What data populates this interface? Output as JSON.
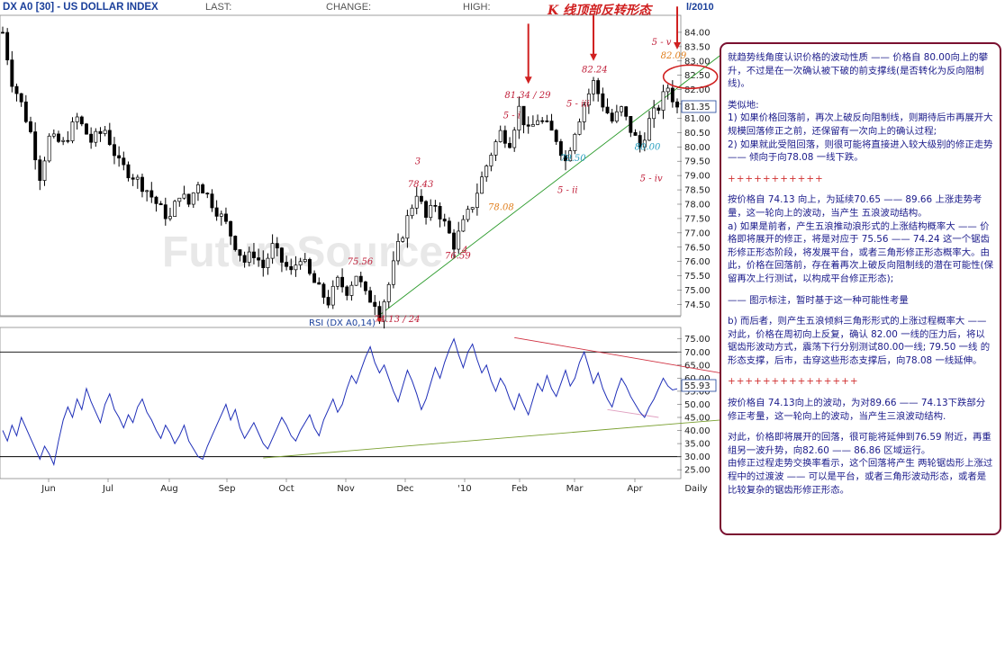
{
  "header": {
    "symbol": "DX A0 [30] - US DOLLAR INDEX",
    "last_label": "LAST:",
    "change_label": "CHANGE:",
    "high_label": "HIGH:",
    "date_fragment": "l/2010",
    "pattern_title": "K 线顶部反转形态"
  },
  "watermark": "FutureSource",
  "chart_data": [
    {
      "type": "candlestick",
      "title": "DX A0 [30] - US DOLLAR INDEX",
      "x_ticks": [
        "Jun",
        "Jul",
        "Aug",
        "Sep",
        "Oct",
        "Nov",
        "Dec",
        "'10",
        "Feb",
        "Mar",
        "Apr",
        "Daily"
      ],
      "y_ticks": [
        "84.00",
        "83.50",
        "83.00",
        "82.50",
        "82.00",
        "81.50",
        "81.00",
        "80.50",
        "80.00",
        "79.50",
        "79.00",
        "78.50",
        "78.00",
        "77.50",
        "77.00",
        "76.50",
        "76.00",
        "75.50",
        "75.00",
        "74.50"
      ],
      "ylim": [
        74.2,
        84.5
      ],
      "last_price": "81.35",
      "series_path": [
        {
          "x": 0,
          "y": 84.0
        },
        {
          "x": 2,
          "y": 82.3
        },
        {
          "x": 4,
          "y": 81.5
        },
        {
          "x": 6,
          "y": 80.5
        },
        {
          "x": 8,
          "y": 79.0
        },
        {
          "x": 10,
          "y": 80.3
        },
        {
          "x": 13,
          "y": 80.1
        },
        {
          "x": 16,
          "y": 81.0
        },
        {
          "x": 19,
          "y": 80.2
        },
        {
          "x": 22,
          "y": 80.6
        },
        {
          "x": 25,
          "y": 79.4
        },
        {
          "x": 28,
          "y": 79.0
        },
        {
          "x": 31,
          "y": 78.5
        },
        {
          "x": 34,
          "y": 77.8
        },
        {
          "x": 36,
          "y": 77.5
        },
        {
          "x": 38,
          "y": 78.4
        },
        {
          "x": 40,
          "y": 78.0
        },
        {
          "x": 42,
          "y": 78.8
        },
        {
          "x": 44,
          "y": 78.3
        },
        {
          "x": 46,
          "y": 77.8
        },
        {
          "x": 48,
          "y": 77.3
        },
        {
          "x": 50,
          "y": 76.6
        },
        {
          "x": 52,
          "y": 76.0
        },
        {
          "x": 54,
          "y": 76.3
        },
        {
          "x": 56,
          "y": 75.8
        },
        {
          "x": 58,
          "y": 76.5
        },
        {
          "x": 60,
          "y": 76.0
        },
        {
          "x": 62,
          "y": 75.6
        },
        {
          "x": 64,
          "y": 76.2
        },
        {
          "x": 66,
          "y": 75.5
        },
        {
          "x": 68,
          "y": 75.0
        },
        {
          "x": 70,
          "y": 74.6
        },
        {
          "x": 72,
          "y": 75.3
        },
        {
          "x": 74,
          "y": 75.0
        },
        {
          "x": 76,
          "y": 75.56
        },
        {
          "x": 78,
          "y": 74.8
        },
        {
          "x": 80,
          "y": 74.6
        },
        {
          "x": 81,
          "y": 74.13
        },
        {
          "x": 83,
          "y": 75.2
        },
        {
          "x": 85,
          "y": 76.5
        },
        {
          "x": 87,
          "y": 77.5
        },
        {
          "x": 89,
          "y": 78.43
        },
        {
          "x": 91,
          "y": 77.5
        },
        {
          "x": 93,
          "y": 78.0
        },
        {
          "x": 95,
          "y": 77.3
        },
        {
          "x": 97,
          "y": 76.59
        },
        {
          "x": 99,
          "y": 77.3
        },
        {
          "x": 101,
          "y": 78.0
        },
        {
          "x": 103,
          "y": 78.9
        },
        {
          "x": 105,
          "y": 79.8
        },
        {
          "x": 107,
          "y": 80.5
        },
        {
          "x": 109,
          "y": 80.2
        },
        {
          "x": 111,
          "y": 81.34
        },
        {
          "x": 113,
          "y": 80.5
        },
        {
          "x": 115,
          "y": 81.0
        },
        {
          "x": 117,
          "y": 80.7
        },
        {
          "x": 119,
          "y": 80.3
        },
        {
          "x": 121,
          "y": 79.5
        },
        {
          "x": 123,
          "y": 80.6
        },
        {
          "x": 125,
          "y": 81.5
        },
        {
          "x": 127,
          "y": 82.24
        },
        {
          "x": 129,
          "y": 81.5
        },
        {
          "x": 131,
          "y": 80.9
        },
        {
          "x": 133,
          "y": 81.3
        },
        {
          "x": 135,
          "y": 80.6
        },
        {
          "x": 137,
          "y": 80.0
        },
        {
          "x": 139,
          "y": 80.9
        },
        {
          "x": 141,
          "y": 81.4
        },
        {
          "x": 143,
          "y": 82.09
        },
        {
          "x": 145,
          "y": 81.35
        }
      ]
    },
    {
      "type": "line",
      "title": "RSI (DX A0,14)",
      "y_ticks": [
        "75.00",
        "70.00",
        "65.00",
        "60.00",
        "55.00",
        "50.00",
        "45.00",
        "40.00",
        "35.00",
        "30.00",
        "25.00"
      ],
      "ylim": [
        23,
        78
      ],
      "last_value": "55.93",
      "x": [
        0,
        1,
        2,
        3,
        4,
        5,
        6,
        7,
        8,
        9,
        10,
        11,
        12,
        13,
        14,
        15,
        16,
        17,
        18,
        19,
        20,
        21,
        22,
        23,
        24,
        25,
        26,
        27,
        28,
        29,
        30,
        31,
        32,
        33,
        34,
        35,
        36,
        37,
        38,
        39,
        40,
        41,
        42,
        43,
        44,
        45,
        46,
        47,
        48,
        49,
        50,
        51,
        52,
        53,
        54,
        55,
        56,
        57,
        58,
        59,
        60,
        61,
        62,
        63,
        64,
        65,
        66,
        67,
        68,
        69,
        70,
        71,
        72,
        73,
        74,
        75,
        76,
        77,
        78,
        79,
        80,
        81,
        82,
        83,
        84,
        85,
        86,
        87,
        88,
        89,
        90,
        91,
        92,
        93,
        94,
        95,
        96,
        97,
        98,
        99,
        100,
        101,
        102,
        103,
        104,
        105,
        106,
        107,
        108,
        109,
        110,
        111,
        112,
        113,
        114,
        115,
        116,
        117,
        118,
        119,
        120,
        121,
        122,
        123,
        124,
        125,
        126,
        127,
        128,
        129,
        130,
        131,
        132,
        133,
        134,
        135,
        136,
        137,
        138,
        139,
        140,
        141,
        142,
        143,
        144,
        145
      ],
      "values": [
        40,
        36,
        42,
        38,
        45,
        41,
        37,
        33,
        29,
        34,
        31,
        27,
        36,
        44,
        49,
        45,
        52,
        48,
        56,
        51,
        47,
        43,
        50,
        54,
        48,
        45,
        41,
        46,
        43,
        49,
        52,
        47,
        44,
        40,
        37,
        42,
        39,
        35,
        38,
        42,
        36,
        33,
        30,
        29,
        34,
        38,
        42,
        46,
        50,
        44,
        48,
        41,
        37,
        40,
        43,
        39,
        35,
        33,
        37,
        41,
        45,
        42,
        38,
        36,
        40,
        43,
        46,
        41,
        38,
        44,
        48,
        52,
        47,
        50,
        56,
        61,
        58,
        63,
        68,
        72,
        66,
        62,
        65,
        60,
        55,
        51,
        57,
        63,
        59,
        54,
        48,
        52,
        58,
        64,
        60,
        66,
        71,
        75,
        69,
        64,
        70,
        73,
        67,
        62,
        65,
        59,
        55,
        60,
        57,
        52,
        48,
        54,
        50,
        46,
        52,
        58,
        55,
        61,
        56,
        53,
        58,
        63,
        57,
        60,
        66,
        70,
        64,
        58,
        62,
        56,
        52,
        49,
        55,
        60,
        57,
        53,
        50,
        47,
        45,
        49,
        52,
        56,
        60,
        57,
        55.5,
        55.93
      ]
    }
  ],
  "annotations": {
    "wave_labels": [
      "5 - i",
      "5 - iii",
      "5 - v",
      "5 - ii",
      "5 - iv",
      "3",
      "4"
    ],
    "price_labels": [
      "81.34 / 29",
      "82.24",
      "82.09",
      "78.43",
      "78.08",
      "75.56",
      "76.59",
      "79.50",
      "80.00",
      "74.13 / 24"
    ]
  },
  "colors": {
    "header_title": "#1a3f9a",
    "candles": "#000000",
    "rsi_line": "#1f2fb8",
    "wave_labels": "#c0203a",
    "support_label": "#2aa0c0",
    "wave4_label": "#e08020",
    "trendline": "#2a9a2a",
    "annotation_text": "#1a1a8a",
    "panel_border": "#7a1030"
  },
  "panel": {
    "p1": "就趋势线角度认识价格的波动性质 —— 价格自 80.00向上的攀升，不过是在一次确认被下破的前支撑线(是否转化为反向阻制线)。",
    "p2a": "类似地:",
    "p2b": "1) 如果价格回落前，再次上破反向阻制线，则期待后市再展开大规模回落修正之前，还保留有一次向上的确认过程;",
    "p2c": "2) 如果就此受阻回落，则很可能将直接进入较大级别的修正走势 —— 倾向于向78.08 一线下跌。",
    "sep": "+++++++++++",
    "p3a": "按价格自 74.13 向上，为延续70.65 —— 89.66 上涨走势考量，这一轮向上的波动，当产生 五浪波动结构。",
    "p3b": "a) 如果是前者，产生五浪推动浪形式的上涨结构概率大 —— 价格即将展开的修正，将是对应于 75.56 —— 74.24 这一个锯齿形修正形态阶段，将发展平台，或者三角形修正形态概率大。由此，价格在回落前，存在着再次上破反向阻制线的潜在可能性(保留再次上行测试，以构成平台修正形态);",
    "p3c": "—— 图示标注，暂时基于这一种可能性考量",
    "p4": "b) 而后者，则产生五浪倾斜三角形形式的上涨过程概率大 —— 对此，价格在周初向上反复，确认 82.00 一线的压力后，将以锯齿形波动方式，震荡下行分别测试80.00一线; 79.50 一线 的形态支撑，后市，击穿这些形态支撑后，向78.08 一线延伸。",
    "sep2": "+++++++++++++++",
    "p5": "按价格自 74.13向上的波动，为对89.66 —— 74.13下跌部分修正考量，这一轮向上的波动，当产生三浪波动结构.",
    "p6a": "对此，价格即将展开的回落，很可能将延伸到76.59 附近，再重组另一波升势，向82.60 —— 86.86 区域运行。",
    "p6b": "由修正过程走势交换率看示，这个回落将产生 两轮锯齿形上涨过程中的过渡波 —— 可以是平台，或者三角形波动形态，或者是比较复杂的锯齿形修正形态。"
  }
}
